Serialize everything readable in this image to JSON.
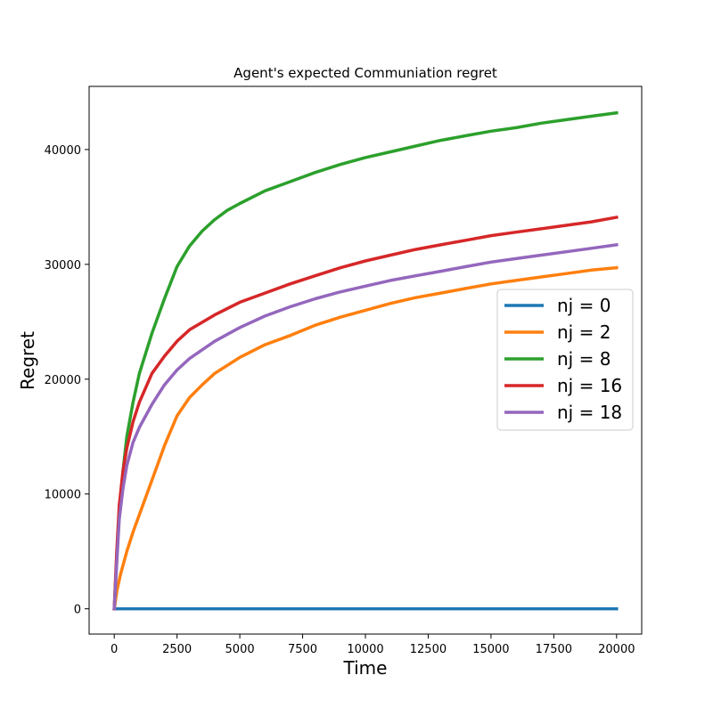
{
  "chart_data": {
    "type": "line",
    "title": "Agent's expected Communiation regret",
    "xlabel": "Time",
    "ylabel": "Regret",
    "xlim": [
      -1000,
      21000
    ],
    "ylim": [
      -2200,
      45500
    ],
    "x_ticks": [
      0,
      2500,
      5000,
      7500,
      10000,
      12500,
      15000,
      17500,
      20000
    ],
    "x_tick_labels": [
      "0",
      "2500",
      "5000",
      "7500",
      "10000",
      "12500",
      "15000",
      "17500",
      "20000"
    ],
    "y_ticks": [
      0,
      10000,
      20000,
      30000,
      40000
    ],
    "y_tick_labels": [
      "0",
      "10000",
      "20000",
      "30000",
      "40000"
    ],
    "grid": false,
    "legend_position": "center-right",
    "series": [
      {
        "name": "nj = 0",
        "color": "#1f77b4",
        "points": [
          [
            0,
            0
          ],
          [
            20000,
            0
          ]
        ]
      },
      {
        "name": "nj = 2",
        "color": "#ff7f0e",
        "points": [
          [
            0,
            0
          ],
          [
            100,
            1500
          ],
          [
            250,
            3000
          ],
          [
            500,
            5000
          ],
          [
            750,
            6700
          ],
          [
            1000,
            8200
          ],
          [
            1500,
            11200
          ],
          [
            2000,
            14200
          ],
          [
            2500,
            16800
          ],
          [
            3000,
            18400
          ],
          [
            3500,
            19500
          ],
          [
            4000,
            20500
          ],
          [
            5000,
            21900
          ],
          [
            6000,
            23000
          ],
          [
            7000,
            23800
          ],
          [
            8000,
            24700
          ],
          [
            9000,
            25400
          ],
          [
            10000,
            26000
          ],
          [
            11000,
            26600
          ],
          [
            12000,
            27100
          ],
          [
            13000,
            27500
          ],
          [
            14000,
            27900
          ],
          [
            15000,
            28300
          ],
          [
            16000,
            28600
          ],
          [
            17000,
            28900
          ],
          [
            18000,
            29200
          ],
          [
            19000,
            29500
          ],
          [
            20000,
            29700
          ]
        ]
      },
      {
        "name": "nj = 8",
        "color": "#2ca02c",
        "points": [
          [
            0,
            0
          ],
          [
            100,
            4500
          ],
          [
            200,
            8500
          ],
          [
            350,
            12000
          ],
          [
            500,
            15000
          ],
          [
            750,
            18000
          ],
          [
            1000,
            20500
          ],
          [
            1500,
            24000
          ],
          [
            2000,
            27000
          ],
          [
            2500,
            29800
          ],
          [
            3000,
            31600
          ],
          [
            3500,
            32900
          ],
          [
            4000,
            33900
          ],
          [
            4500,
            34700
          ],
          [
            5000,
            35300
          ],
          [
            6000,
            36400
          ],
          [
            7000,
            37200
          ],
          [
            8000,
            38000
          ],
          [
            9000,
            38700
          ],
          [
            10000,
            39300
          ],
          [
            11000,
            39800
          ],
          [
            12000,
            40300
          ],
          [
            13000,
            40800
          ],
          [
            14000,
            41200
          ],
          [
            15000,
            41600
          ],
          [
            16000,
            41900
          ],
          [
            17000,
            42300
          ],
          [
            18000,
            42600
          ],
          [
            19000,
            42900
          ],
          [
            20000,
            43200
          ]
        ]
      },
      {
        "name": "nj = 16",
        "color": "#d62728",
        "points": [
          [
            0,
            0
          ],
          [
            100,
            5000
          ],
          [
            200,
            9000
          ],
          [
            350,
            12000
          ],
          [
            500,
            14000
          ],
          [
            750,
            16300
          ],
          [
            1000,
            18000
          ],
          [
            1500,
            20500
          ],
          [
            2000,
            22000
          ],
          [
            2500,
            23300
          ],
          [
            3000,
            24300
          ],
          [
            4000,
            25600
          ],
          [
            5000,
            26700
          ],
          [
            6000,
            27500
          ],
          [
            7000,
            28300
          ],
          [
            8000,
            29000
          ],
          [
            9000,
            29700
          ],
          [
            10000,
            30300
          ],
          [
            11000,
            30800
          ],
          [
            12000,
            31300
          ],
          [
            13000,
            31700
          ],
          [
            14000,
            32100
          ],
          [
            15000,
            32500
          ],
          [
            16000,
            32800
          ],
          [
            17000,
            33100
          ],
          [
            18000,
            33400
          ],
          [
            19000,
            33700
          ],
          [
            20000,
            34100
          ]
        ]
      },
      {
        "name": "nj = 18",
        "color": "#9467bd",
        "points": [
          [
            0,
            0
          ],
          [
            100,
            4000
          ],
          [
            200,
            7800
          ],
          [
            350,
            10500
          ],
          [
            500,
            12500
          ],
          [
            750,
            14500
          ],
          [
            1000,
            15800
          ],
          [
            1500,
            17800
          ],
          [
            2000,
            19500
          ],
          [
            2500,
            20800
          ],
          [
            3000,
            21800
          ],
          [
            4000,
            23300
          ],
          [
            5000,
            24500
          ],
          [
            6000,
            25500
          ],
          [
            7000,
            26300
          ],
          [
            8000,
            27000
          ],
          [
            9000,
            27600
          ],
          [
            10000,
            28100
          ],
          [
            11000,
            28600
          ],
          [
            12000,
            29000
          ],
          [
            13000,
            29400
          ],
          [
            14000,
            29800
          ],
          [
            15000,
            30200
          ],
          [
            16000,
            30500
          ],
          [
            17000,
            30800
          ],
          [
            18000,
            31100
          ],
          [
            19000,
            31400
          ],
          [
            20000,
            31700
          ]
        ]
      }
    ]
  }
}
